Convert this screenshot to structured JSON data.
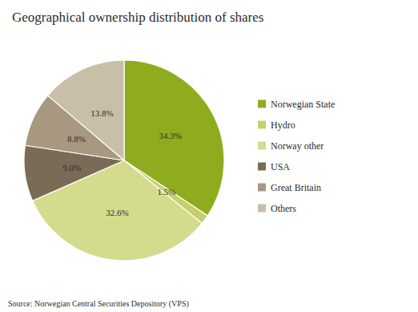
{
  "chart_data": {
    "type": "pie",
    "title": "Geographical ownership distribution of shares",
    "annotations": [
      "Source: Norwegian Central Securities Depository (VPS)"
    ],
    "categories": [
      "Norwegian State",
      "Hydro",
      "Norway other",
      "USA",
      "Great Britain",
      "Others"
    ],
    "values": [
      34.3,
      1.5,
      32.6,
      9.0,
      8.8,
      13.8
    ],
    "value_labels": [
      "34.3%",
      "1.5%",
      "32.6%",
      "9.0%",
      "8.8%",
      "13.8%"
    ],
    "colors": [
      "#8fac1e",
      "#c8ce6a",
      "#d4db8c",
      "#7a6b56",
      "#a89880",
      "#c8bfa8"
    ],
    "data_labels": true,
    "legend": "right"
  }
}
